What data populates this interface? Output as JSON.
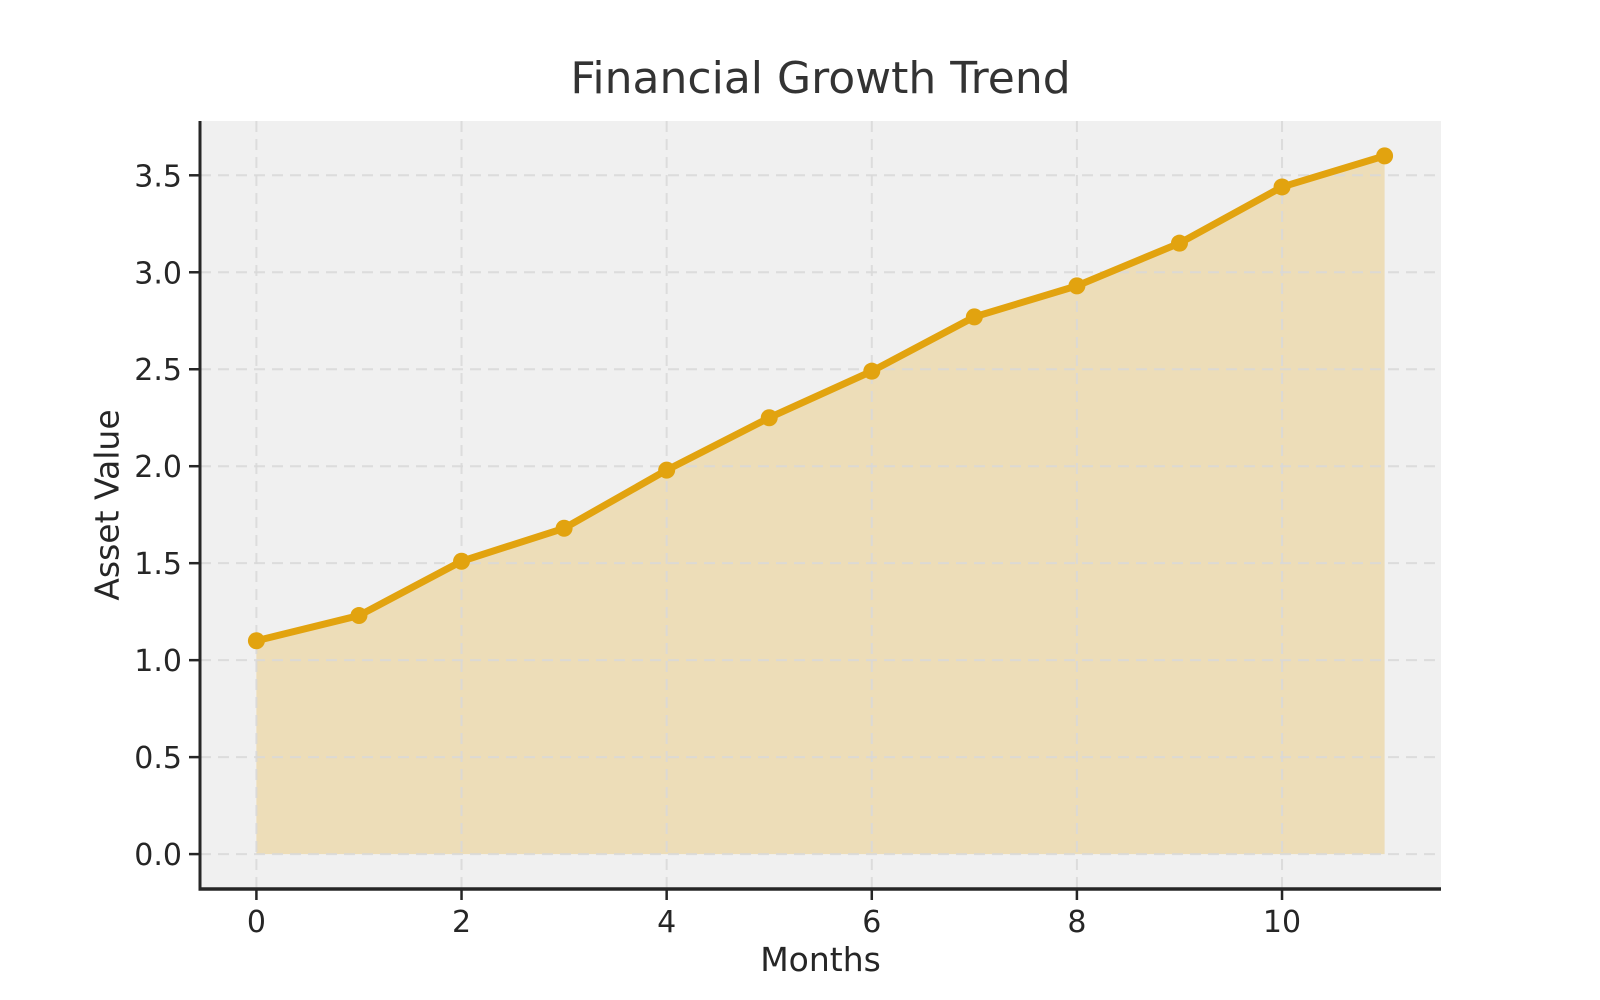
{
  "chart_data": {
    "type": "area",
    "title": "Financial Growth Trend",
    "xlabel": "Months",
    "ylabel": "Asset Value",
    "x": [
      0,
      1,
      2,
      3,
      4,
      5,
      6,
      7,
      8,
      9,
      10,
      11
    ],
    "values": [
      1.1,
      1.23,
      1.51,
      1.68,
      1.98,
      2.25,
      2.49,
      2.77,
      2.93,
      3.15,
      3.44,
      3.6
    ],
    "fill_baseline": 0,
    "xlim": [
      -0.55,
      11.55
    ],
    "ylim": [
      -0.18,
      3.78
    ],
    "xticks": {
      "values": [
        0,
        2,
        4,
        6,
        8,
        10
      ],
      "labels": [
        "0",
        "2",
        "4",
        "6",
        "8",
        "10"
      ]
    },
    "yticks": {
      "values": [
        0.0,
        0.5,
        1.0,
        1.5,
        2.0,
        2.5,
        3.0,
        3.5
      ],
      "labels": [
        "0.0",
        "0.5",
        "1.0",
        "1.5",
        "2.0",
        "2.5",
        "3.0",
        "3.5"
      ]
    },
    "grid": true,
    "grid_style": "dashed",
    "legend": "none",
    "colors": {
      "line": "#E2A30F",
      "marker": "#E2A30F",
      "fill": "#E2A30F",
      "fill_opacity": 0.25,
      "plot_background": "#F0F0F0",
      "figure_background": "#FFFFFF",
      "gridline": "#D8D8D8",
      "spine": "#262626",
      "tick": "#262626",
      "tick_label_color": "#262626",
      "title_color": "#333333"
    },
    "line_width": 7,
    "marker_radius": 8.5
  }
}
